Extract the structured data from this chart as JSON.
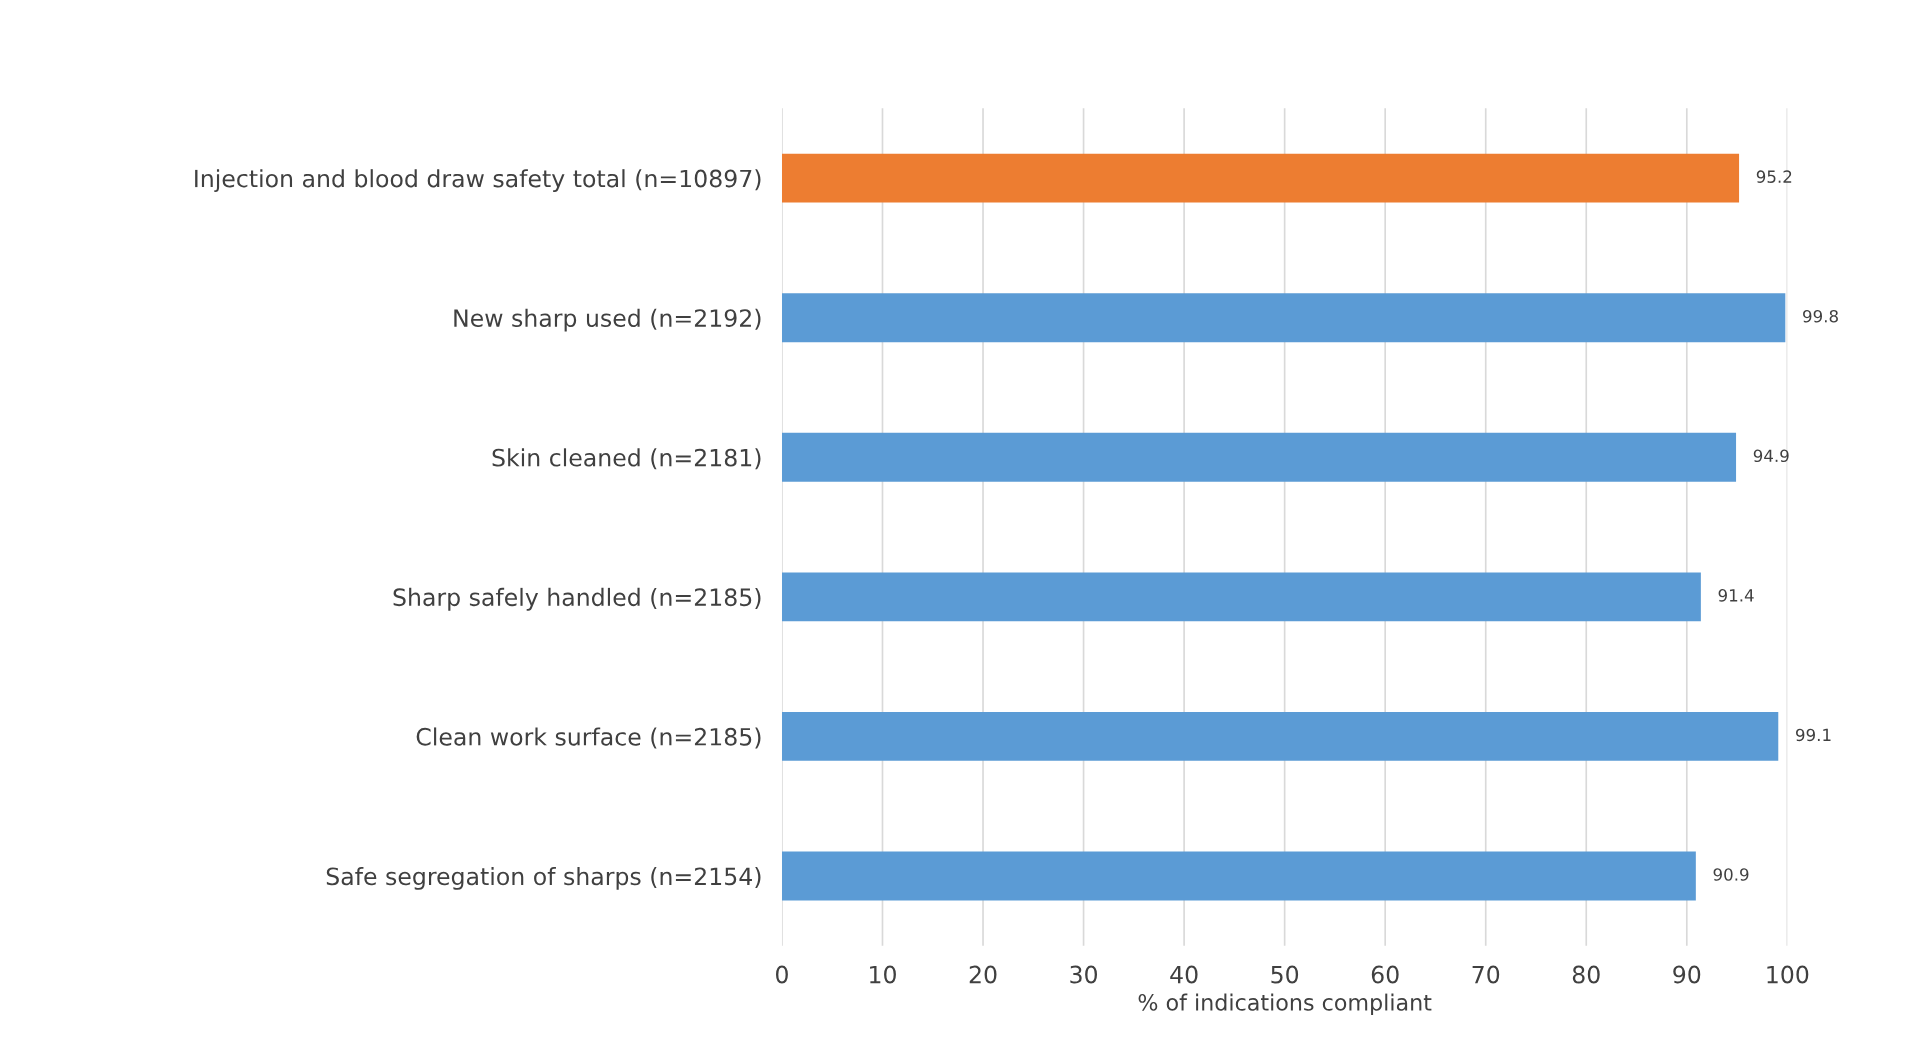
{
  "chart_data": {
    "type": "bar",
    "orientation": "horizontal",
    "xlabel": "% of indications compliant",
    "categories": [
      "Injection and blood draw safety total (n=10897)",
      "New sharp used (n=2192)",
      "Skin cleaned (n=2181)",
      "Sharp safely handled (n=2185)",
      "Clean work surface (n=2185)",
      "Safe segregation of sharps (n=2154)"
    ],
    "values": [
      95.2,
      99.8,
      94.9,
      91.4,
      99.1,
      90.9
    ],
    "colors": [
      "#ed7d31",
      "#5b9bd5",
      "#5b9bd5",
      "#5b9bd5",
      "#5b9bd5",
      "#5b9bd5"
    ],
    "xlim": [
      0,
      100
    ],
    "xticks": [
      0,
      10,
      20,
      30,
      40,
      50,
      60,
      70,
      80,
      90,
      100
    ],
    "grid": "x",
    "data_labels": true,
    "legend": false
  }
}
